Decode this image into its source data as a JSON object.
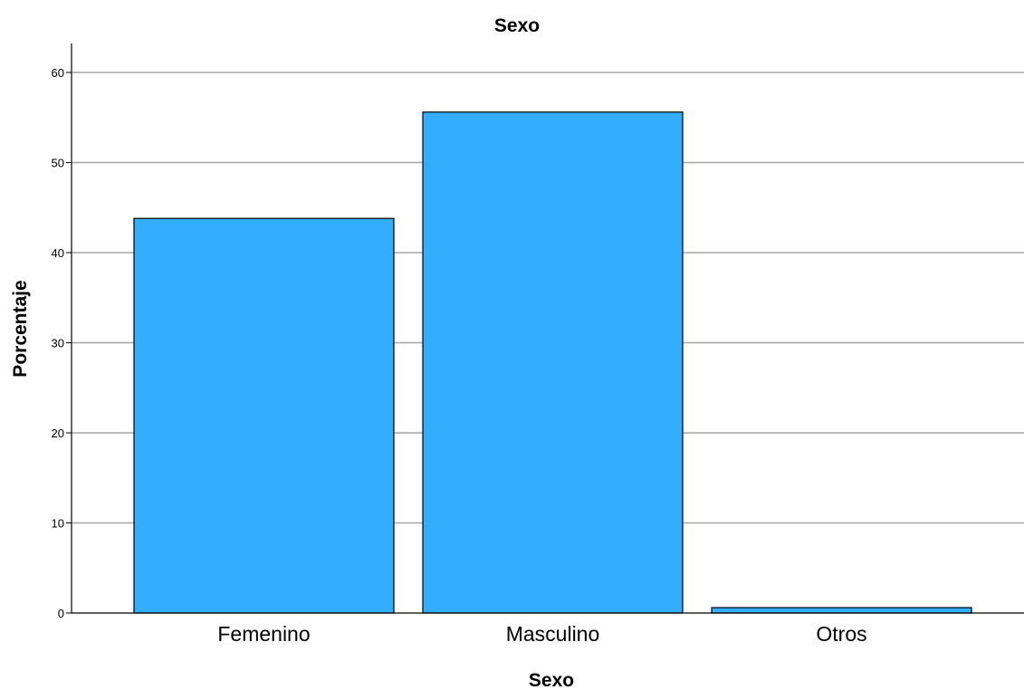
{
  "chart_data": {
    "type": "bar",
    "title": "Sexo",
    "xlabel": "Sexo",
    "ylabel": "Porcentaje",
    "categories": [
      "Femenino",
      "Masculino",
      "Otros"
    ],
    "values": [
      43.8,
      55.6,
      0.6
    ],
    "ylim": [
      0,
      63
    ],
    "yticks": [
      0,
      10,
      20,
      30,
      40,
      50,
      60
    ],
    "grid": true,
    "colors": {
      "bar_fill": "#33adff",
      "bar_stroke": "#000000",
      "grid": "#a6a6a6",
      "axis": "#000000"
    }
  }
}
